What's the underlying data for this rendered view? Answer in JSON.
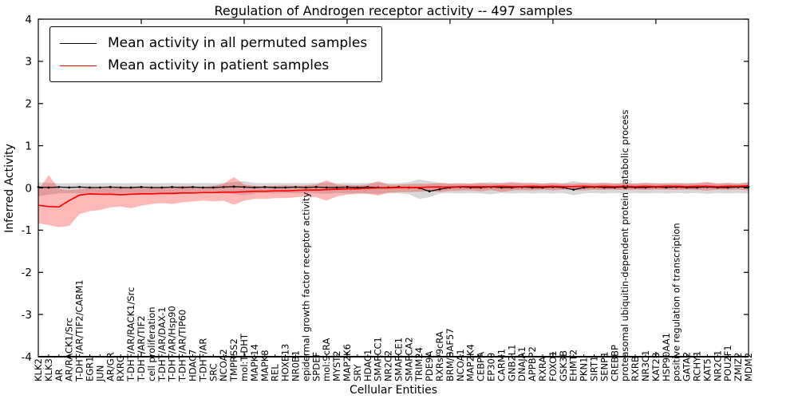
{
  "figure": {
    "title": "Regulation of Androgen receptor activity -- 497 samples",
    "xlabel": "Cellular Entities",
    "ylabel": "Inferred Activity"
  },
  "legend": {
    "entries": [
      {
        "label": "Mean activity in all permuted samples",
        "color": "#000000"
      },
      {
        "label": "Mean activity in patient samples",
        "color": "#ff0000"
      }
    ]
  },
  "chart_data": {
    "type": "line",
    "title": "Regulation of Androgen receptor activity -- 497 samples",
    "xlabel": "Cellular Entities",
    "ylabel": "Inferred Activity",
    "ylim": [
      -4,
      4
    ],
    "grid": false,
    "legend_position": "upper left",
    "yticks": {
      "values": [
        4,
        3,
        2,
        1,
        0,
        -1,
        -2,
        -3,
        -4
      ],
      "labels": [
        "4",
        "3",
        "2",
        "1",
        "0",
        "-1",
        "-2",
        "-3",
        "-4"
      ]
    },
    "x_major_tick_step": 10,
    "categories": [
      "KLK2",
      "KLK3",
      "AR",
      "AR/RACK1/Src",
      "T-DHT/AR/TIF2/CARM1",
      "EGR1",
      "JUN",
      "AR/GR",
      "RXRG",
      "T-DHT/AR/RACK1/Src",
      "T-DHT/AR/TIF2",
      "cell proliferation",
      "T-DHT/AR/DAX-1",
      "T-DHT/AR/Hsp90",
      "T-DHT/AR/TIP60",
      "HDAC7",
      "T-DHT/AR",
      "SRC",
      "NCOA2",
      "TMPRSS2",
      "mol:T-DHT",
      "MAPK14",
      "MAPK8",
      "REL",
      "HOXB13",
      "NR0B1",
      "epidermal growth factor receptor activity",
      "SPDEF",
      "mol:9cRA",
      "MYST2",
      "MAP2K6",
      "SRY",
      "HDAC1",
      "SMARCC1",
      "NR2C2",
      "SMARCE1",
      "SMARCA2",
      "TRIM24",
      "PDE9A",
      "RXRs/9cRA",
      "BRM/BAF57",
      "NCOA1",
      "MAP2K4",
      "CEBPA",
      "EP300",
      "CARM1",
      "GNB2L1",
      "DNAJA1",
      "APPBP2",
      "RXRA",
      "FOXO1",
      "GSK3B",
      "EHMT2",
      "PKN1",
      "SIRT1",
      "SENP1",
      "CREBBP",
      "proteasomal ubiquitin-dependent protein catabolic process",
      "RXRB",
      "NR3C1",
      "KAT2B",
      "HSP90AA1",
      "positive regulation of transcription",
      "GATA2",
      "RCHY1",
      "KAT5",
      "NR2C1",
      "POU2F1",
      "ZMIZ2",
      "MDM2"
    ],
    "series": [
      {
        "name": "Mean activity in all permuted samples",
        "color": "#000000",
        "band_color": "#999999",
        "band_opacity": 0.38,
        "values": [
          0.02,
          0.01,
          0.02,
          0.01,
          0.02,
          0.01,
          0.01,
          0.02,
          0.01,
          0.01,
          0.02,
          0.01,
          0.01,
          0.02,
          0.01,
          0.02,
          0.01,
          0.01,
          0.02,
          0.03,
          0.02,
          0.01,
          0.02,
          0.01,
          0.01,
          0.02,
          0.01,
          0.02,
          0.01,
          0.01,
          0.02,
          0.01,
          0.02,
          0.01,
          0.01,
          0.02,
          0.01,
          0.0,
          -0.08,
          -0.03,
          0.01,
          0.02,
          0.01,
          0.01,
          0.02,
          0.01,
          0.01,
          0.02,
          0.01,
          0.01,
          0.02,
          0.01,
          -0.04,
          0.01,
          0.02,
          0.01,
          0.01,
          0.02,
          0.01,
          0.01,
          0.02,
          0.01,
          0.02,
          0.01,
          0.01,
          0.02,
          0.01,
          0.01,
          0.02,
          0.02
        ],
        "band_upper": [
          0.13,
          0.12,
          0.11,
          0.11,
          0.12,
          0.11,
          0.11,
          0.12,
          0.11,
          0.11,
          0.12,
          0.11,
          0.11,
          0.12,
          0.11,
          0.11,
          0.12,
          0.11,
          0.12,
          0.14,
          0.16,
          0.12,
          0.11,
          0.12,
          0.11,
          0.12,
          0.11,
          0.12,
          0.13,
          0.11,
          0.12,
          0.11,
          0.12,
          0.13,
          0.11,
          0.12,
          0.14,
          0.2,
          0.16,
          0.12,
          0.11,
          0.12,
          0.11,
          0.12,
          0.14,
          0.11,
          0.12,
          0.11,
          0.12,
          0.11,
          0.12,
          0.11,
          0.16,
          0.12,
          0.11,
          0.12,
          0.11,
          0.12,
          0.11,
          0.12,
          0.11,
          0.12,
          0.11,
          0.12,
          0.11,
          0.13,
          0.11,
          0.12,
          0.11,
          0.12
        ],
        "band_lower": [
          -0.2,
          -0.16,
          -0.13,
          -0.12,
          -0.13,
          -0.12,
          -0.12,
          -0.13,
          -0.12,
          -0.12,
          -0.13,
          -0.12,
          -0.12,
          -0.13,
          -0.12,
          -0.12,
          -0.13,
          -0.12,
          -0.13,
          -0.15,
          -0.17,
          -0.13,
          -0.12,
          -0.13,
          -0.12,
          -0.13,
          -0.12,
          -0.13,
          -0.14,
          -0.12,
          -0.13,
          -0.12,
          -0.13,
          -0.14,
          -0.12,
          -0.13,
          -0.15,
          -0.26,
          -0.22,
          -0.13,
          -0.12,
          -0.13,
          -0.12,
          -0.13,
          -0.15,
          -0.12,
          -0.13,
          -0.12,
          -0.13,
          -0.12,
          -0.13,
          -0.12,
          -0.17,
          -0.13,
          -0.12,
          -0.13,
          -0.12,
          -0.13,
          -0.12,
          -0.13,
          -0.12,
          -0.13,
          -0.12,
          -0.13,
          -0.12,
          -0.14,
          -0.12,
          -0.13,
          -0.12,
          -0.13
        ]
      },
      {
        "name": "Mean activity in patient samples",
        "color": "#ff0000",
        "band_color": "#ff0000",
        "band_opacity": 0.28,
        "values": [
          -0.41,
          -0.44,
          -0.45,
          -0.3,
          -0.17,
          -0.14,
          -0.15,
          -0.15,
          -0.16,
          -0.15,
          -0.14,
          -0.14,
          -0.13,
          -0.13,
          -0.12,
          -0.12,
          -0.11,
          -0.11,
          -0.1,
          -0.1,
          -0.09,
          -0.08,
          -0.08,
          -0.07,
          -0.07,
          -0.06,
          -0.05,
          -0.05,
          -0.04,
          -0.03,
          -0.02,
          -0.02,
          -0.01,
          0.0,
          0.0,
          0.01,
          0.01,
          0.01,
          0.02,
          0.02,
          0.02,
          0.03,
          0.03,
          0.03,
          0.03,
          0.04,
          0.03,
          0.03,
          0.04,
          0.03,
          0.04,
          0.03,
          0.03,
          0.04,
          0.03,
          0.04,
          0.03,
          0.04,
          0.03,
          0.04,
          0.03,
          0.04,
          0.04,
          0.03,
          0.04,
          0.04,
          0.03,
          0.04,
          0.04,
          0.05
        ],
        "band_upper": [
          -0.05,
          0.3,
          -0.02,
          -0.05,
          -0.03,
          0.0,
          -0.02,
          0.0,
          -0.01,
          0.02,
          0.0,
          -0.01,
          0.02,
          0.0,
          0.05,
          0.03,
          0.02,
          0.05,
          0.1,
          0.26,
          0.08,
          0.05,
          0.04,
          0.05,
          0.06,
          0.05,
          0.06,
          0.08,
          0.18,
          0.08,
          0.07,
          0.06,
          0.08,
          0.16,
          0.08,
          0.08,
          0.09,
          0.1,
          0.1,
          0.12,
          0.1,
          0.1,
          0.1,
          0.12,
          0.1,
          0.12,
          0.14,
          0.12,
          0.12,
          0.1,
          0.12,
          0.1,
          0.1,
          0.12,
          0.11,
          0.12,
          0.1,
          0.12,
          0.1,
          0.12,
          0.11,
          0.1,
          0.12,
          0.1,
          0.12,
          0.14,
          0.1,
          0.12,
          0.1,
          0.14
        ],
        "band_lower": [
          -0.84,
          -0.88,
          -0.93,
          -0.9,
          -0.62,
          -0.55,
          -0.52,
          -0.46,
          -0.44,
          -0.48,
          -0.42,
          -0.38,
          -0.36,
          -0.38,
          -0.34,
          -0.32,
          -0.3,
          -0.32,
          -0.3,
          -0.4,
          -0.3,
          -0.26,
          -0.26,
          -0.24,
          -0.24,
          -0.22,
          -0.2,
          -0.22,
          -0.3,
          -0.2,
          -0.16,
          -0.14,
          -0.14,
          -0.18,
          -0.12,
          -0.1,
          -0.1,
          -0.09,
          -0.08,
          -0.1,
          -0.07,
          -0.06,
          -0.06,
          -0.08,
          -0.05,
          -0.1,
          -0.06,
          -0.05,
          -0.06,
          -0.04,
          -0.06,
          -0.04,
          -0.05,
          -0.06,
          -0.04,
          -0.05,
          -0.04,
          -0.05,
          -0.04,
          -0.05,
          -0.04,
          -0.04,
          -0.05,
          -0.04,
          -0.05,
          -0.06,
          -0.04,
          -0.05,
          -0.04,
          -0.06
        ]
      }
    ]
  }
}
